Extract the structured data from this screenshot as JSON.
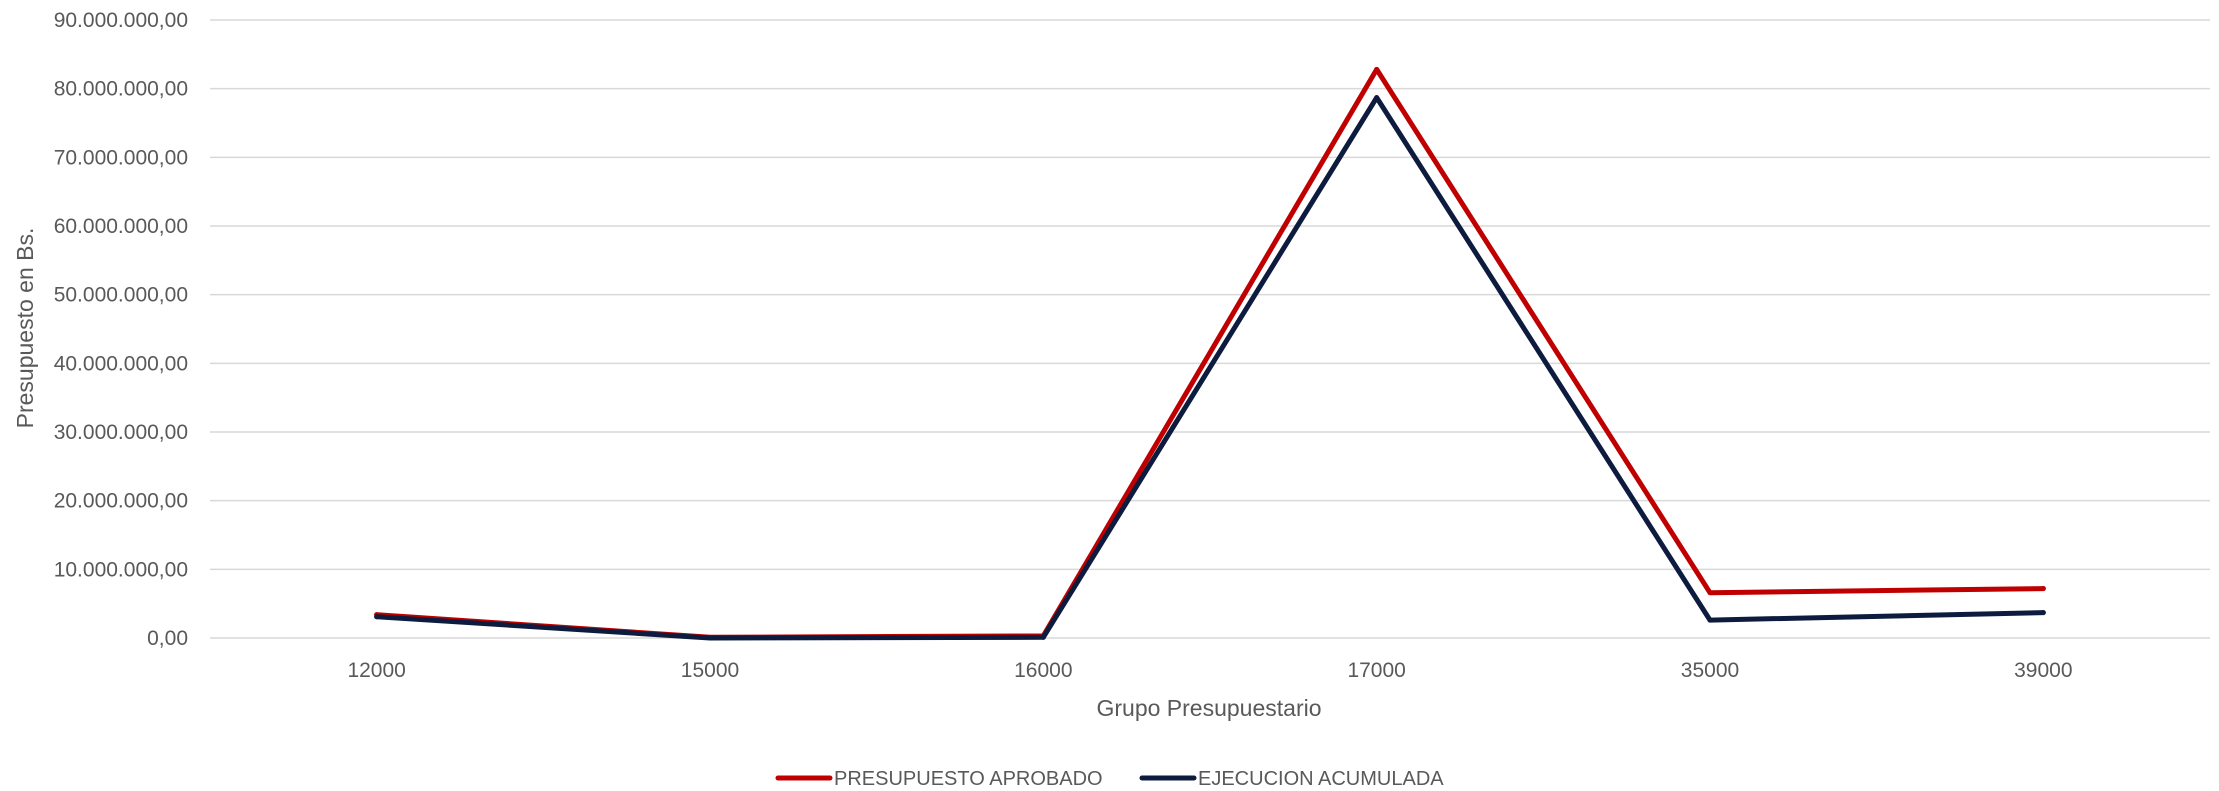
{
  "chart_data": {
    "type": "line",
    "title": "",
    "xlabel": "Grupo Presupuestario",
    "ylabel": "Presupuesto en Bs.",
    "categories": [
      "12000",
      "15000",
      "16000",
      "17000",
      "35000",
      "39000"
    ],
    "ylim": [
      0,
      90000000
    ],
    "yticks": [
      0,
      10000000,
      20000000,
      30000000,
      40000000,
      50000000,
      60000000,
      70000000,
      80000000,
      90000000
    ],
    "ytick_labels": [
      "0,00",
      "10.000.000,00",
      "20.000.000,00",
      "30.000.000,00",
      "40.000.000,00",
      "50.000.000,00",
      "60.000.000,00",
      "70.000.000,00",
      "80.000.000,00",
      "90.000.000,00"
    ],
    "grid": true,
    "legend_position": "bottom",
    "series": [
      {
        "name": "PRESUPUESTO APROBADO",
        "color": "#C00000",
        "values": [
          3400000,
          100000,
          300000,
          82800000,
          6600000,
          7200000
        ]
      },
      {
        "name": "EJECUCION ACUMULADA",
        "color": "#0D1B3E",
        "values": [
          3100000,
          0,
          100000,
          78700000,
          2600000,
          3700000
        ]
      }
    ]
  }
}
